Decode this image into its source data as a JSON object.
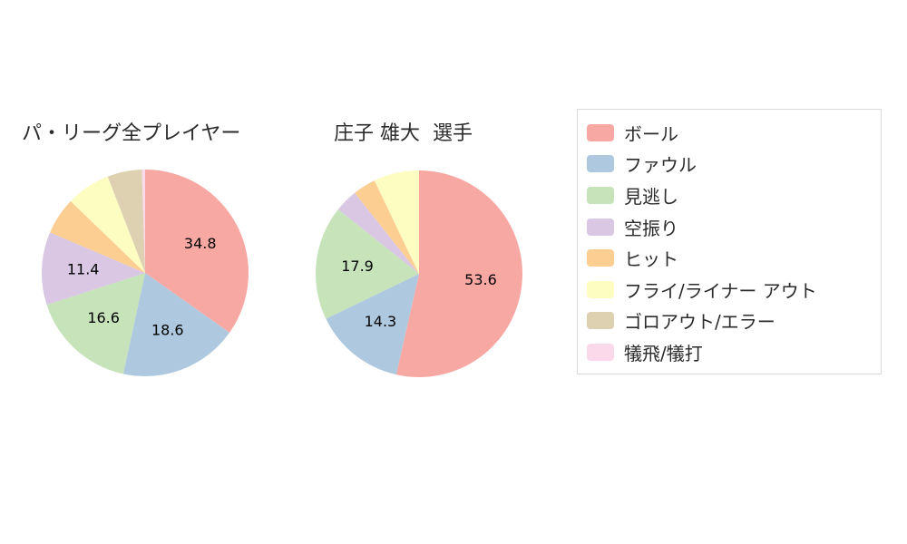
{
  "titles": {
    "left": "パ・リーグ全プレイヤー",
    "right": "庄子 雄大  選手"
  },
  "legend": {
    "items": [
      {
        "label": "ボール",
        "color": "#F8A8A3"
      },
      {
        "label": "ファウル",
        "color": "#AEC9DF"
      },
      {
        "label": "見逃し",
        "color": "#C6E3BA"
      },
      {
        "label": "空振り",
        "color": "#D9C7E3"
      },
      {
        "label": "ヒット",
        "color": "#FCCE92"
      },
      {
        "label": "フライ/ライナー アウト",
        "color": "#FDFDC2"
      },
      {
        "label": "ゴロアウト/エラー",
        "color": "#DDD1B2"
      },
      {
        "label": "犠飛/犠打",
        "color": "#FBD9EB"
      }
    ]
  },
  "chart_data": [
    {
      "type": "pie",
      "title": "パ・リーグ全プレイヤー",
      "unit": "percent",
      "start": "12 o'clock",
      "direction": "clockwise",
      "legend_position": "right",
      "slices": [
        {
          "name": "ボール",
          "value": 34.8,
          "label": "34.8",
          "color": "#F8A8A3"
        },
        {
          "name": "ファウル",
          "value": 18.6,
          "label": "18.6",
          "color": "#AEC9DF"
        },
        {
          "name": "見逃し",
          "value": 16.6,
          "label": "16.6",
          "color": "#C6E3BA"
        },
        {
          "name": "空振り",
          "value": 11.4,
          "label": "11.4",
          "color": "#D9C7E3"
        },
        {
          "name": "ヒット",
          "value": 5.8,
          "label": "",
          "color": "#FCCE92"
        },
        {
          "name": "フライ/ライナー アウト",
          "value": 6.9,
          "label": "",
          "color": "#FDFDC2"
        },
        {
          "name": "ゴロアウト/エラー",
          "value": 5.4,
          "label": "",
          "color": "#DDD1B2"
        },
        {
          "name": "犠飛/犠打",
          "value": 0.5,
          "label": "",
          "color": "#FBD9EB"
        }
      ]
    },
    {
      "type": "pie",
      "title": "庄子 雄大 選手",
      "unit": "percent",
      "start": "12 o'clock",
      "direction": "clockwise",
      "legend_position": "right",
      "slices": [
        {
          "name": "ボール",
          "value": 53.6,
          "label": "53.6",
          "color": "#F8A8A3"
        },
        {
          "name": "ファウル",
          "value": 14.3,
          "label": "14.3",
          "color": "#AEC9DF"
        },
        {
          "name": "見逃し",
          "value": 17.9,
          "label": "17.9",
          "color": "#C6E3BA"
        },
        {
          "name": "空振り",
          "value": 3.6,
          "label": "",
          "color": "#D9C7E3"
        },
        {
          "name": "ヒット",
          "value": 3.6,
          "label": "",
          "color": "#FCCE92"
        },
        {
          "name": "フライ/ライナー アウト",
          "value": 7.1,
          "label": "",
          "color": "#FDFDC2"
        },
        {
          "name": "ゴロアウト/エラー",
          "value": 0,
          "label": "",
          "color": "#DDD1B2"
        },
        {
          "name": "犠飛/犠打",
          "value": 0,
          "label": "",
          "color": "#FBD9EB"
        }
      ]
    }
  ]
}
